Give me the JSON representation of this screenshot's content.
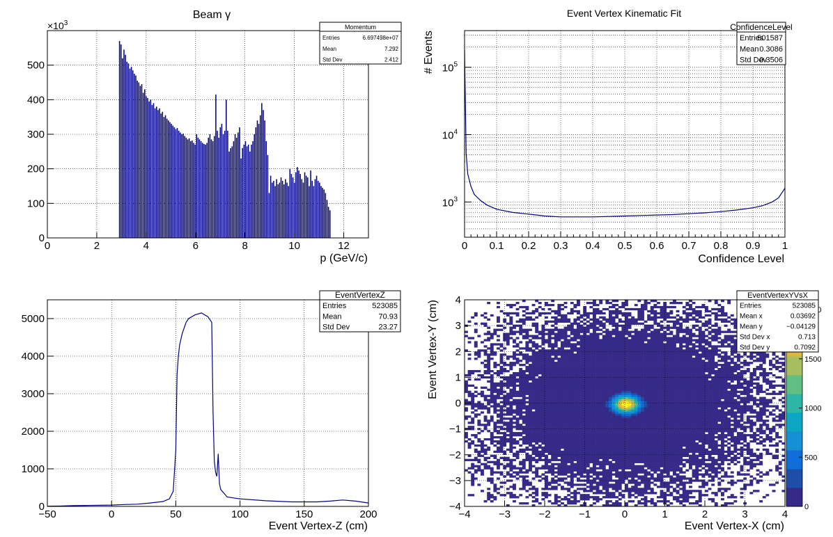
{
  "chart_data": [
    {
      "type": "bar",
      "name": "beam-momentum",
      "title": "Beam γ",
      "xlabel": "p (GeV/c)",
      "ylabel": "",
      "xlim": [
        0,
        13
      ],
      "ylim": [
        0,
        600
      ],
      "y_multiplier_label": "×10",
      "y_multiplier_exp": "3",
      "grid": true,
      "xticks": [
        0,
        2,
        4,
        6,
        8,
        10,
        12
      ],
      "yticks": [
        0,
        100,
        200,
        300,
        400,
        500
      ],
      "color": "#000080",
      "stats": {
        "title": "Momentum",
        "rows": [
          {
            "label": "Entries",
            "value": "6.697498e+07"
          },
          {
            "label": "Mean",
            "value": "7.292"
          },
          {
            "label": "Std Dev",
            "value": "2.412"
          }
        ]
      },
      "x": [
        2.9,
        2.96,
        3.02,
        3.08,
        3.14,
        3.2,
        3.26,
        3.32,
        3.38,
        3.44,
        3.5,
        3.56,
        3.62,
        3.68,
        3.74,
        3.8,
        3.86,
        3.92,
        3.98,
        4.04,
        4.1,
        4.16,
        4.22,
        4.28,
        4.34,
        4.4,
        4.46,
        4.52,
        4.58,
        4.64,
        4.7,
        4.76,
        4.82,
        4.88,
        4.94,
        5.0,
        5.06,
        5.12,
        5.18,
        5.24,
        5.3,
        5.36,
        5.42,
        5.48,
        5.54,
        5.6,
        5.66,
        5.72,
        5.78,
        5.84,
        5.9,
        5.96,
        6.02,
        6.08,
        6.14,
        6.2,
        6.26,
        6.32,
        6.38,
        6.44,
        6.5,
        6.56,
        6.62,
        6.68,
        6.74,
        6.8,
        6.86,
        6.92,
        6.98,
        7.04,
        7.1,
        7.16,
        7.22,
        7.28,
        7.34,
        7.4,
        7.46,
        7.52,
        7.58,
        7.64,
        7.7,
        7.76,
        7.82,
        7.88,
        7.94,
        8.0,
        8.06,
        8.12,
        8.18,
        8.24,
        8.3,
        8.36,
        8.42,
        8.48,
        8.54,
        8.6,
        8.66,
        8.72,
        8.78,
        8.84,
        8.9,
        8.96,
        9.02,
        9.08,
        9.14,
        9.2,
        9.26,
        9.32,
        9.38,
        9.44,
        9.5,
        9.56,
        9.62,
        9.68,
        9.74,
        9.8,
        9.86,
        9.92,
        9.98,
        10.04,
        10.1,
        10.16,
        10.22,
        10.28,
        10.34,
        10.4,
        10.46,
        10.52,
        10.58,
        10.64,
        10.7,
        10.76,
        10.82,
        10.88,
        10.94,
        11.0,
        11.06,
        11.12,
        11.18,
        11.24,
        11.3,
        11.36,
        11.42
      ],
      "values": [
        570,
        560,
        520,
        545,
        530,
        510,
        505,
        490,
        495,
        485,
        475,
        470,
        455,
        450,
        440,
        445,
        420,
        430,
        410,
        405,
        395,
        400,
        385,
        390,
        375,
        380,
        370,
        375,
        360,
        365,
        350,
        355,
        345,
        340,
        335,
        330,
        325,
        320,
        315,
        318,
        310,
        305,
        300,
        302,
        295,
        290,
        285,
        288,
        280,
        282,
        275,
        270,
        300,
        290,
        285,
        280,
        275,
        272,
        270,
        275,
        290,
        300,
        285,
        280,
        295,
        415,
        310,
        290,
        320,
        330,
        300,
        310,
        400,
        310,
        250,
        260,
        265,
        280,
        300,
        290,
        305,
        320,
        230,
        260,
        270,
        280,
        265,
        270,
        250,
        270,
        280,
        300,
        320,
        340,
        330,
        355,
        390,
        370,
        340,
        280,
        240,
        130,
        180,
        160,
        165,
        150,
        170,
        155,
        160,
        175,
        165,
        155,
        170,
        160,
        150,
        200,
        185,
        175,
        160,
        190,
        205,
        195,
        185,
        170,
        160,
        190,
        180,
        175,
        150,
        195,
        165,
        150,
        170,
        180,
        165,
        160,
        150,
        145,
        140,
        130,
        110,
        90,
        80
      ]
    },
    {
      "type": "line",
      "name": "confidence-level",
      "title": "Event Vertex Kinematic Fit",
      "xlabel": "Confidence Level",
      "ylabel": "# Events",
      "xlim": [
        0,
        1
      ],
      "ylim": [
        300,
        350000
      ],
      "yscale": "log",
      "grid": true,
      "xticks": [
        "0",
        "0.1",
        "0.2",
        "0.3",
        "0.4",
        "0.5",
        "0.6",
        "0.7",
        "0.8",
        "0.9",
        "1"
      ],
      "yticks_major": [
        {
          "base": "10",
          "exp": "3",
          "value": 1000
        },
        {
          "base": "10",
          "exp": "4",
          "value": 10000
        },
        {
          "base": "10",
          "exp": "5",
          "value": 100000
        }
      ],
      "color": "#000080",
      "stats": {
        "title": "ConfidenceLevel",
        "rows": [
          {
            "label": "Entries",
            "value": "501587"
          },
          {
            "label": "Mean",
            "value": "0.3086"
          },
          {
            "label": "Std Dev",
            "value": "0.3506"
          }
        ]
      },
      "x": [
        0.0,
        0.005,
        0.01,
        0.02,
        0.03,
        0.05,
        0.07,
        0.1,
        0.15,
        0.2,
        0.25,
        0.3,
        0.35,
        0.4,
        0.45,
        0.5,
        0.55,
        0.6,
        0.65,
        0.7,
        0.75,
        0.8,
        0.85,
        0.9,
        0.93,
        0.96,
        0.98,
        1.0
      ],
      "values": [
        180000,
        5200,
        2600,
        1700,
        1300,
        1050,
        900,
        780,
        700,
        660,
        620,
        600,
        600,
        600,
        610,
        620,
        630,
        640,
        650,
        670,
        690,
        720,
        760,
        820,
        880,
        1000,
        1150,
        1600
      ]
    },
    {
      "type": "line",
      "name": "event-vertex-z",
      "title": "",
      "xlabel": "Event Vertex-Z (cm)",
      "ylabel": "",
      "xlim": [
        -50,
        200
      ],
      "ylim": [
        0,
        5500
      ],
      "grid": true,
      "xticks": [
        -50,
        0,
        50,
        100,
        150,
        200
      ],
      "yticks": [
        0,
        1000,
        2000,
        3000,
        4000,
        5000
      ],
      "color": "#000080",
      "stats": {
        "title": "EventVertexZ",
        "rows": [
          {
            "label": "Entries",
            "value": "523085"
          },
          {
            "label": "Mean",
            "value": "70.93"
          },
          {
            "label": "Std Dev",
            "value": "23.27"
          }
        ]
      },
      "x": [
        -50,
        -40,
        -30,
        -20,
        -10,
        0,
        10,
        20,
        30,
        40,
        45,
        48,
        50,
        51,
        52,
        53,
        55,
        58,
        60,
        65,
        70,
        75,
        78,
        79,
        80,
        81,
        82,
        83,
        84,
        85,
        90,
        100,
        120,
        140,
        160,
        170,
        180,
        190,
        200
      ],
      "values": [
        5,
        10,
        20,
        25,
        30,
        35,
        50,
        60,
        90,
        130,
        200,
        400,
        1500,
        3500,
        4000,
        4300,
        4600,
        4900,
        5000,
        5100,
        5150,
        5050,
        4900,
        2500,
        1200,
        900,
        800,
        1400,
        600,
        450,
        250,
        200,
        150,
        120,
        120,
        140,
        170,
        140,
        90
      ]
    },
    {
      "type": "heatmap",
      "name": "event-vertex-yx",
      "title": "",
      "xlabel": "Event Vertex-X (cm)",
      "ylabel": "Event Vertex-Y (cm)",
      "xlim": [
        -4,
        4
      ],
      "ylim": [
        -4,
        4
      ],
      "zlim": [
        0,
        2100
      ],
      "grid": true,
      "xticks": [
        "−4",
        "−3",
        "−2",
        "−1",
        "0",
        "1",
        "2",
        "3",
        "4"
      ],
      "yticks": [
        "−4",
        "−3",
        "−2",
        "−1",
        "0",
        "1",
        "2",
        "3",
        "4"
      ],
      "zticks": [
        "0",
        "500",
        "1000",
        "1500",
        "2000"
      ],
      "hotspot": {
        "x": 0.037,
        "y": -0.041,
        "sigma": 0.22,
        "peak": 2100
      },
      "background_level": 20,
      "stats": {
        "title": "EventVertexYVsX",
        "rows": [
          {
            "label": "Entries",
            "value": "523085"
          },
          {
            "label": "Mean x",
            "value": "0.03692"
          },
          {
            "label": "Mean y",
            "value": "−0.04129"
          },
          {
            "label": "Std Dev x",
            "value": "0.713"
          },
          {
            "label": "Std Dev y",
            "value": "0.7092"
          }
        ]
      }
    }
  ]
}
